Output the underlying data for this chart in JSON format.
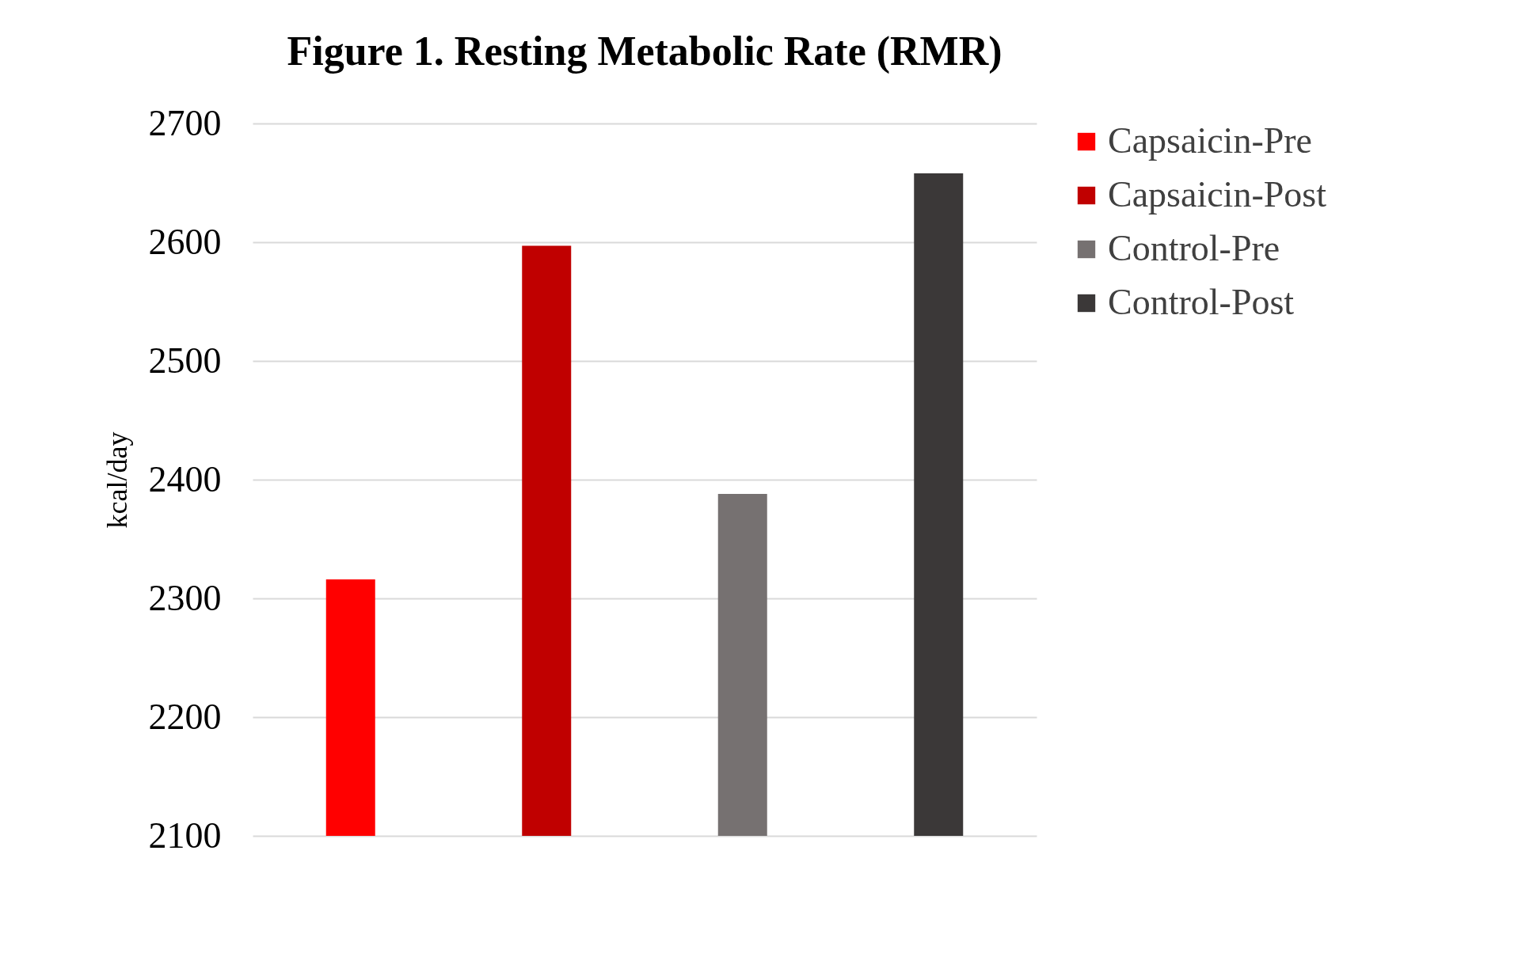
{
  "chart_data": {
    "type": "bar",
    "title": "Figure 1. Resting Metabolic Rate (RMR)",
    "ylabel": "kcal/day",
    "categories": [
      null,
      null,
      null,
      null
    ],
    "series": [
      {
        "name": "Capsaicin-Pre",
        "color": "#ff0000",
        "values": [
          2316,
          null,
          null,
          null
        ]
      },
      {
        "name": "Capsaicin-Post",
        "color": "#c00000",
        "values": [
          null,
          2597,
          null,
          null
        ]
      },
      {
        "name": "Control-Pre",
        "color": "#767171",
        "values": [
          null,
          null,
          2388,
          null
        ]
      },
      {
        "name": "Control-Post",
        "color": "#3b3838",
        "values": [
          null,
          null,
          null,
          2658
        ]
      }
    ],
    "ylim": [
      2100,
      2700
    ],
    "yticks": [
      2100,
      2200,
      2300,
      2400,
      2500,
      2600,
      2700
    ],
    "grid": "y",
    "legend": "right",
    "tick_labels": "y"
  }
}
